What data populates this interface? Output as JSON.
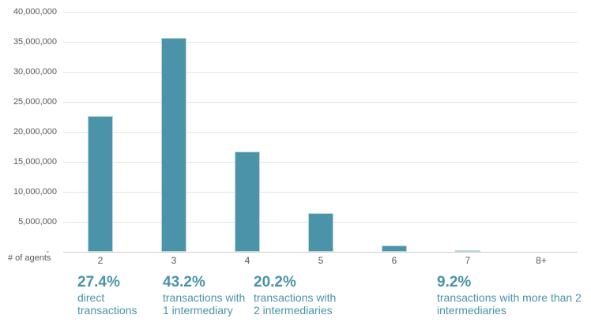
{
  "chart_data": {
    "type": "bar",
    "title": "",
    "xlabel": "# of agents",
    "ylabel": "",
    "categories": [
      "2",
      "3",
      "4",
      "5",
      "6",
      "7",
      "8+"
    ],
    "values": [
      22600000,
      35600000,
      16700000,
      6400000,
      1100000,
      200000,
      0
    ],
    "ylim": [
      0,
      40000000
    ],
    "grid": true,
    "legend": false,
    "yticks": [
      {
        "value": 40000000,
        "label": "40,000,000"
      },
      {
        "value": 35000000,
        "label": "35,000,000"
      },
      {
        "value": 30000000,
        "label": "30,000,000"
      },
      {
        "value": 25000000,
        "label": "25,000,000"
      },
      {
        "value": 20000000,
        "label": "20,000,000"
      },
      {
        "value": 15000000,
        "label": "15,000,000"
      },
      {
        "value": 10000000,
        "label": "10,000,000"
      },
      {
        "value": 5000000,
        "label": "5,000,000"
      },
      {
        "value": 0,
        "label": "-"
      }
    ]
  },
  "annotations": [
    {
      "pct": "27.4%",
      "line1": "direct",
      "line2": "transactions"
    },
    {
      "pct": "43.2%",
      "line1": "transactions with",
      "line2": "1 intermediary"
    },
    {
      "pct": "20.2%",
      "line1": "transactions with",
      "line2": "2 intermediaries"
    },
    {
      "pct": "9.2%",
      "line1": "transactions with more than 2",
      "line2": "intermediaries"
    }
  ],
  "colors": {
    "bar": "#4a93a8",
    "bar_border": "#bcd8de",
    "gridline": "#e8e2db",
    "axis_line": "#d2cbc4",
    "axis_text": "#595959",
    "accent_text": "#4a93a8"
  }
}
